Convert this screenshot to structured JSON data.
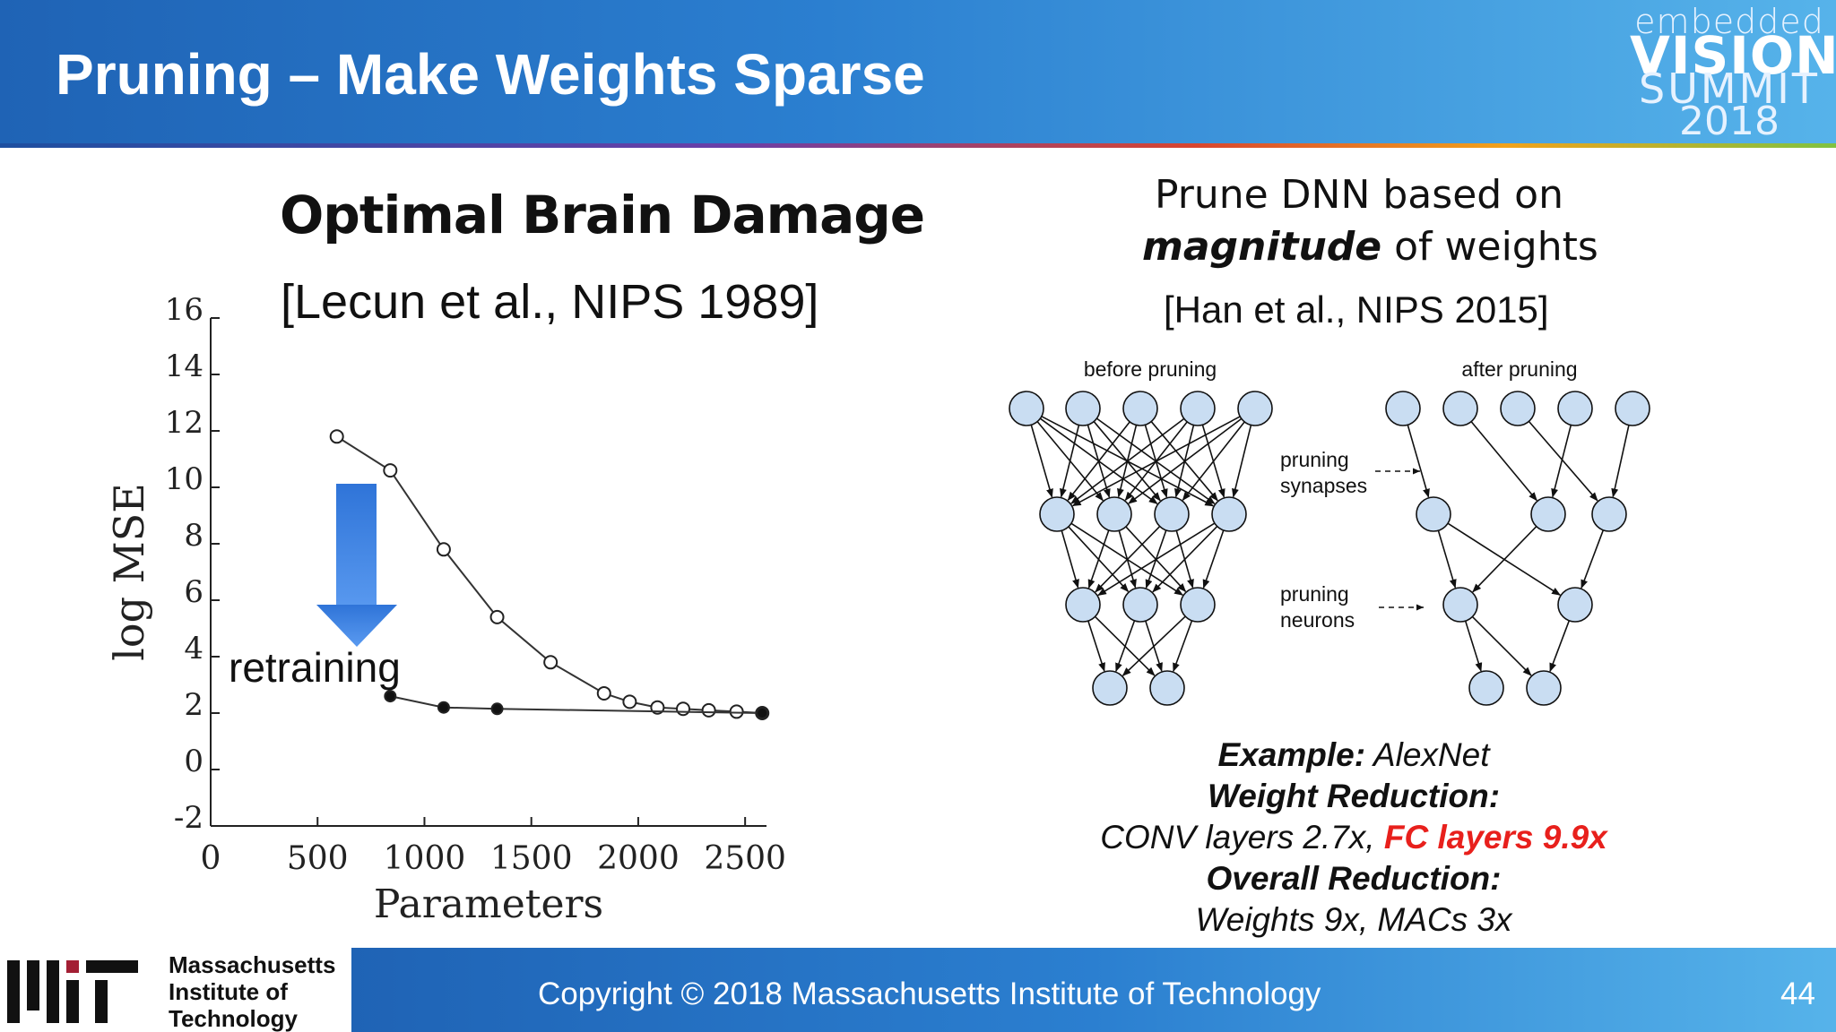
{
  "header": {
    "title": "Pruning – Make Weights Sparse",
    "logo_text": [
      "embedded",
      "VISION",
      "SUMMIT",
      "2018"
    ]
  },
  "left_panel": {
    "title": "Optimal Brain Damage",
    "citation": "[Lecun et al., NIPS 1989]",
    "arrow_label": "retraining"
  },
  "right_panel": {
    "heading_line1": "Prune DNN based on",
    "heading_line2_bold": "magnitude",
    "heading_line2_rest": " of weights",
    "citation": "[Han et al., NIPS 2015]",
    "diagram": {
      "before_label": "before pruning",
      "after_label": "after pruning",
      "synapses_label_1": "pruning",
      "synapses_label_2": "synapses",
      "neurons_label_1": "pruning",
      "neurons_label_2": "neurons"
    },
    "results": {
      "example_label": "Example:",
      "example_value": " AlexNet",
      "weight_label": "Weight Reduction:",
      "conv_text": "CONV layers 2.7x, ",
      "fc_text": "FC layers 9.9x",
      "overall_label": "Overall Reduction:",
      "overall_value": "Weights 9x, MACs 3x"
    }
  },
  "footer": {
    "org_line1": "Massachusetts",
    "org_line2": "Institute of",
    "org_line3": "Technology",
    "copyright": "Copyright © 2018 Massachusetts Institute of Technology",
    "page_number": "44"
  },
  "chart_data": {
    "type": "line",
    "xlabel": "Parameters",
    "ylabel": "log MSE",
    "xlim": [
      0,
      2600
    ],
    "ylim": [
      -2,
      16
    ],
    "x_ticks": [
      0,
      500,
      1000,
      1500,
      2000,
      2500
    ],
    "y_ticks": [
      -2,
      0,
      2,
      4,
      6,
      8,
      10,
      12,
      14,
      16
    ],
    "grid": false,
    "series": [
      {
        "marker": "open-circle",
        "x": [
          590,
          840,
          1090,
          1340,
          1590,
          1840,
          1960,
          2090,
          2210,
          2330,
          2460,
          2580
        ],
        "y": [
          11.8,
          10.6,
          7.8,
          5.4,
          3.8,
          2.7,
          2.4,
          2.2,
          2.15,
          2.1,
          2.05,
          2.0
        ]
      },
      {
        "marker": "filled-circle",
        "x": [
          840,
          1090,
          1340,
          2580
        ],
        "y": [
          2.6,
          2.2,
          2.15,
          2.0
        ]
      }
    ]
  }
}
